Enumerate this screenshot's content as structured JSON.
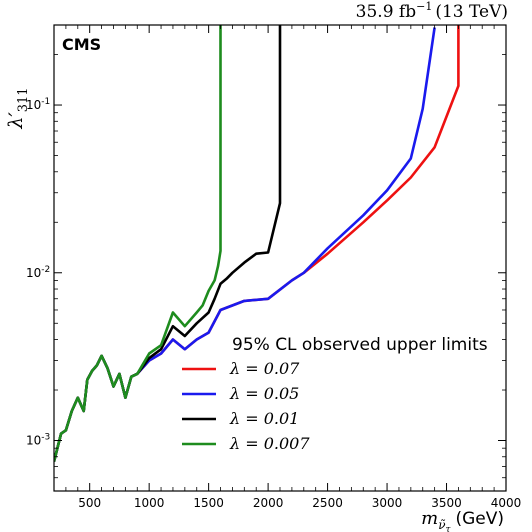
{
  "chart_data": {
    "type": "line",
    "experiment_label": "CMS",
    "lumi_label": "35.9 fb",
    "lumi_exp": "−1",
    "energy_label": "(13 TeV)",
    "ylabel_main": "λ′",
    "ylabel_sub": "311",
    "xlabel_main": "m",
    "xlabel_sub": "ν̃",
    "xlabel_subsub": "τ",
    "xlabel_unit": "(GeV)",
    "xlim": [
      200,
      4000
    ],
    "ylim": [
      0.0005,
      0.3
    ],
    "yscale": "log",
    "xticks": [
      500,
      1000,
      1500,
      2000,
      2500,
      3000,
      3500,
      4000
    ],
    "xtick_labels": [
      "500",
      "1000",
      "1500",
      "2000",
      "2500",
      "3000",
      "3500",
      "4000"
    ],
    "yticks": [
      0.001,
      0.01,
      0.1
    ],
    "ytick_labels": [
      {
        "base": "10",
        "exp": "-3"
      },
      {
        "base": "10",
        "exp": "-2"
      },
      {
        "base": "10",
        "exp": "-1"
      }
    ],
    "legend_title": "95% CL observed upper limits",
    "legend_placement": "lower-right",
    "series": [
      {
        "name": "λ = 0.07",
        "color": "#ee1111",
        "x": [
          200,
          260,
          300,
          350,
          400,
          450,
          480,
          520,
          560,
          600,
          650,
          700,
          750,
          800,
          850,
          900,
          1000,
          1100,
          1200,
          1300,
          1400,
          1500,
          1600,
          1800,
          2000,
          2200,
          2300,
          2500,
          2800,
          3000,
          3200,
          3400,
          3600,
          3600
        ],
        "y": [
          0.00075,
          0.0011,
          0.00115,
          0.0015,
          0.0018,
          0.0015,
          0.0023,
          0.0026,
          0.0028,
          0.0032,
          0.0027,
          0.0021,
          0.0025,
          0.0018,
          0.0024,
          0.0025,
          0.003,
          0.0033,
          0.004,
          0.0035,
          0.004,
          0.0044,
          0.006,
          0.0068,
          0.007,
          0.009,
          0.01,
          0.013,
          0.02,
          0.027,
          0.037,
          0.056,
          0.13,
          0.3
        ]
      },
      {
        "name": "λ = 0.05",
        "color": "#1a1aee",
        "x": [
          200,
          260,
          300,
          350,
          400,
          450,
          480,
          520,
          560,
          600,
          650,
          700,
          750,
          800,
          850,
          900,
          1000,
          1100,
          1200,
          1300,
          1400,
          1500,
          1600,
          1800,
          2000,
          2200,
          2300,
          2500,
          2800,
          3000,
          3200,
          3300,
          3400
        ],
        "y": [
          0.00075,
          0.0011,
          0.00115,
          0.0015,
          0.0018,
          0.0015,
          0.0023,
          0.0026,
          0.0028,
          0.0032,
          0.0027,
          0.0021,
          0.0025,
          0.0018,
          0.0024,
          0.0025,
          0.003,
          0.0033,
          0.004,
          0.0035,
          0.004,
          0.0044,
          0.006,
          0.0068,
          0.007,
          0.009,
          0.01,
          0.014,
          0.022,
          0.031,
          0.048,
          0.095,
          0.29
        ]
      },
      {
        "name": "λ = 0.01",
        "color": "#000000",
        "x": [
          200,
          260,
          300,
          350,
          400,
          450,
          480,
          520,
          560,
          600,
          650,
          700,
          750,
          800,
          850,
          900,
          1000,
          1100,
          1200,
          1300,
          1400,
          1500,
          1550,
          1600,
          1650,
          1700,
          1800,
          1900,
          2000,
          2100,
          2100
        ],
        "y": [
          0.00075,
          0.0011,
          0.00115,
          0.0015,
          0.0018,
          0.0015,
          0.0023,
          0.0026,
          0.0028,
          0.0032,
          0.0027,
          0.0021,
          0.0025,
          0.0018,
          0.0024,
          0.0025,
          0.0031,
          0.0035,
          0.0048,
          0.0042,
          0.005,
          0.0058,
          0.007,
          0.0086,
          0.0092,
          0.01,
          0.0115,
          0.013,
          0.0132,
          0.026,
          0.3
        ]
      },
      {
        "name": "λ = 0.007",
        "color": "#1e8c1e",
        "x": [
          200,
          260,
          300,
          350,
          400,
          450,
          480,
          520,
          560,
          600,
          650,
          700,
          750,
          800,
          850,
          900,
          1000,
          1100,
          1200,
          1300,
          1400,
          1450,
          1500,
          1550,
          1580,
          1600,
          1600
        ],
        "y": [
          0.00075,
          0.0011,
          0.00115,
          0.0015,
          0.0018,
          0.0015,
          0.0023,
          0.0026,
          0.0028,
          0.0032,
          0.0027,
          0.0021,
          0.0025,
          0.0018,
          0.0024,
          0.0025,
          0.0033,
          0.0037,
          0.0058,
          0.0048,
          0.0058,
          0.0064,
          0.0078,
          0.009,
          0.011,
          0.0135,
          0.3
        ]
      }
    ]
  }
}
